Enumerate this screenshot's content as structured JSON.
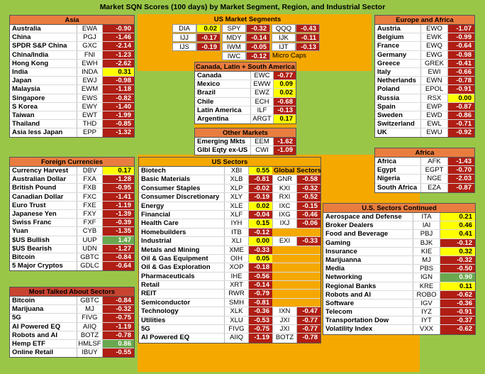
{
  "title": "Market SQN Scores (100 days) by Market Segment, Region, and Industrial Sector",
  "colors": {
    "negative": "#b01e14",
    "positive": "#ffff00",
    "strong_positive": "#6aa84f",
    "header": "#e97d3f",
    "frame": "#f5a800",
    "background": "#9ac648"
  },
  "asia": {
    "header": "Asia",
    "rows": [
      {
        "name": "Australia",
        "ticker": "EWA",
        "value": "-0.90"
      },
      {
        "name": "China",
        "ticker": "PGJ",
        "value": "-1.46"
      },
      {
        "name": "SPDR S&P China",
        "ticker": "GXC",
        "value": "-2.14"
      },
      {
        "name": "China/India",
        "ticker": "FNI",
        "value": "-1.23"
      },
      {
        "name": "Hong Kong",
        "ticker": "EWH",
        "value": "-2.62"
      },
      {
        "name": "India",
        "ticker": "INDA",
        "value": "0.31"
      },
      {
        "name": "Japan",
        "ticker": "EWJ",
        "value": "-0.98"
      },
      {
        "name": "Malaysia",
        "ticker": "EWM",
        "value": "-1.18"
      },
      {
        "name": "Singapore",
        "ticker": "EWS",
        "value": "-0.82"
      },
      {
        "name": "S Korea",
        "ticker": "EWY",
        "value": "-1.40"
      },
      {
        "name": "Taiwan",
        "ticker": "EWT",
        "value": "-1.99"
      },
      {
        "name": "Thailand",
        "ticker": "THD",
        "value": "-0.85"
      },
      {
        "name": "Asia less Japan",
        "ticker": "EPP",
        "value": "-1.32"
      }
    ]
  },
  "currencies": {
    "header": "Foreign Currencies",
    "rows": [
      {
        "name": "Currency Harvest",
        "ticker": "DBV",
        "value": "0.17"
      },
      {
        "name": "Australian Dollar",
        "ticker": "FXA",
        "value": "-1.28"
      },
      {
        "name": "British Pound",
        "ticker": "FXB",
        "value": "-0.95"
      },
      {
        "name": "Canadian Dollar",
        "ticker": "FXC",
        "value": "-1.41"
      },
      {
        "name": "Euro Trust",
        "ticker": "FXE",
        "value": "-1.19"
      },
      {
        "name": "Japanese Yen",
        "ticker": "FXY",
        "value": "-1.39"
      },
      {
        "name": "Swiss Franc",
        "ticker": "FXF",
        "value": "-0.39"
      },
      {
        "name": "Yuan",
        "ticker": "CYB",
        "value": "-1.35"
      },
      {
        "name": "$US Bullish",
        "ticker": "UUP",
        "value": "1.47"
      },
      {
        "name": "$US Bearish",
        "ticker": "UDN",
        "value": "-1.27"
      },
      {
        "name": "Bitcoin",
        "ticker": "GBTC",
        "value": "-0.84"
      },
      {
        "name": "5 Major Cryptos",
        "ticker": "GDLC",
        "value": "-0.64"
      }
    ]
  },
  "talked": {
    "header": "Most Talked About Sectors",
    "rows": [
      {
        "name": "Bitcoin",
        "ticker": "GBTC",
        "value": "-0.84"
      },
      {
        "name": "Marijuana",
        "ticker": "MJ",
        "value": "-0.32"
      },
      {
        "name": "5G",
        "ticker": "FIVG",
        "value": "-0.75"
      },
      {
        "name": "AI Powered EQ",
        "ticker": "AIIQ",
        "value": "-1.19"
      },
      {
        "name": "Robots and AI",
        "ticker": "BOTZ",
        "value": "-0.78"
      },
      {
        "name": "Hemp ETF",
        "ticker": "HMLSF",
        "value": "0.86"
      },
      {
        "name": "Online Retail",
        "ticker": "IBUY",
        "value": "-0.55"
      }
    ]
  },
  "us_segments": {
    "header": "US Market Segments",
    "cells": [
      {
        "ticker": "DIA",
        "value": "0.02"
      },
      {
        "ticker": "SPY",
        "value": "-0.32"
      },
      {
        "ticker": "QQQ",
        "value": "-0.43"
      },
      {
        "ticker": "IJJ",
        "value": "-0.17"
      },
      {
        "ticker": "MDY",
        "value": "-0.14"
      },
      {
        "ticker": "IJK",
        "value": "-0.11"
      },
      {
        "ticker": "IJS",
        "value": "-0.19"
      },
      {
        "ticker": "IWM",
        "value": "-0.05"
      },
      {
        "ticker": "IJT",
        "value": "-0.13"
      }
    ],
    "micro": {
      "ticker": "IWC",
      "value": "-0.12",
      "label": "Micro Caps"
    }
  },
  "americas": {
    "header": "Canada, Latin + South America",
    "rows": [
      {
        "name": "Canada",
        "ticker": "EWC",
        "value": "-0.77"
      },
      {
        "name": "Mexico",
        "ticker": "EWW",
        "value": "0.09"
      },
      {
        "name": "Brazil",
        "ticker": "EWZ",
        "value": "0.02"
      },
      {
        "name": "Chile",
        "ticker": "ECH",
        "value": "-0.68"
      },
      {
        "name": "Latin America",
        "ticker": "ILF",
        "value": "-0.13"
      },
      {
        "name": "Argentina",
        "ticker": "ARGT",
        "value": "0.17"
      }
    ]
  },
  "other": {
    "header": "Other Markets",
    "rows": [
      {
        "name": "Emerging Mkts",
        "ticker": "EEM",
        "value": "-1.62"
      },
      {
        "name": "Glbl Eqty ex-US",
        "ticker": "CWI",
        "value": "-1.09"
      }
    ]
  },
  "europe": {
    "header": "Europe and Africa",
    "rows": [
      {
        "name": "Austria",
        "ticker": "EWO",
        "value": "-1.07"
      },
      {
        "name": "Belgium",
        "ticker": "EWK",
        "value": "-0.99"
      },
      {
        "name": "France",
        "ticker": "EWQ",
        "value": "-0.64"
      },
      {
        "name": "Germany",
        "ticker": "EWG",
        "value": "-0.98"
      },
      {
        "name": "Greece",
        "ticker": "GREK",
        "value": "-0.41"
      },
      {
        "name": "Italy",
        "ticker": "EWI",
        "value": "-0.66"
      },
      {
        "name": "Netherlands",
        "ticker": "EWN",
        "value": "-0.78"
      },
      {
        "name": "Poland",
        "ticker": "EPOL",
        "value": "-0.91"
      },
      {
        "name": "Russia",
        "ticker": "RSX",
        "value": "0.00"
      },
      {
        "name": "Spain",
        "ticker": "EWP",
        "value": "-0.87"
      },
      {
        "name": "Sweden",
        "ticker": "EWD",
        "value": "-0.86"
      },
      {
        "name": "Switzerland",
        "ticker": "EWL",
        "value": "-0.71"
      },
      {
        "name": "UK",
        "ticker": "EWU",
        "value": "-0.92"
      }
    ]
  },
  "africa": {
    "header": "Africa",
    "rows": [
      {
        "name": "Africa",
        "ticker": "AFK",
        "value": "-1.43"
      },
      {
        "name": "Egypt",
        "ticker": "EGPT",
        "value": "-0.70"
      },
      {
        "name": "Nigeria",
        "ticker": "NGE",
        "value": "-2.03"
      },
      {
        "name": "South Africa",
        "ticker": "EZA",
        "value": "-0.87"
      }
    ]
  },
  "us_sectors": {
    "header": "US Sectors",
    "global_header": "Global Sectors",
    "rows": [
      {
        "name": "Biotech",
        "ticker": "XBI",
        "value": "0.55",
        "g_ticker": "",
        "g_value": ""
      },
      {
        "name": "Basic Materials",
        "ticker": "XLB",
        "value": "-0.81",
        "g_ticker": "GNR",
        "g_value": "-0.58"
      },
      {
        "name": "Consumer Staples",
        "ticker": "XLP",
        "value": "-0.02",
        "g_ticker": "KXI",
        "g_value": "-0.32"
      },
      {
        "name": "Consumer Discretionary",
        "ticker": "XLY",
        "value": "-0.19",
        "g_ticker": "RXI",
        "g_value": "-0.52"
      },
      {
        "name": "Energy",
        "ticker": "XLE",
        "value": "0.02",
        "g_ticker": "IXC",
        "g_value": "-0.15"
      },
      {
        "name": "Financial",
        "ticker": "XLF",
        "value": "-0.04",
        "g_ticker": "IXG",
        "g_value": "-0.46"
      },
      {
        "name": "Health Care",
        "ticker": "IYH",
        "value": "0.15",
        "g_ticker": "IXJ",
        "g_value": "-0.06"
      },
      {
        "name": "Homebuilders",
        "ticker": "ITB",
        "value": "-0.12",
        "g_ticker": "",
        "g_value": ""
      },
      {
        "name": "Industrial",
        "ticker": "XLI",
        "value": "0.00",
        "g_ticker": "EXI",
        "g_value": "-0.33"
      },
      {
        "name": "Metals and Mining",
        "ticker": "XME",
        "value": "-0.33",
        "g_ticker": "",
        "g_value": ""
      },
      {
        "name": "Oil & Gas Equipment",
        "ticker": "OIH",
        "value": "0.05",
        "g_ticker": "",
        "g_value": ""
      },
      {
        "name": "Oil & Gas Exploration",
        "ticker": "XOP",
        "value": "-0.18",
        "g_ticker": "",
        "g_value": ""
      },
      {
        "name": "Pharmaceuticals",
        "ticker": "IHE",
        "value": "-0.56",
        "g_ticker": "",
        "g_value": ""
      },
      {
        "name": "Retail",
        "ticker": "XRT",
        "value": "-0.14",
        "g_ticker": "",
        "g_value": ""
      },
      {
        "name": "REIT",
        "ticker": "RWR",
        "value": "-0.79",
        "g_ticker": "",
        "g_value": ""
      },
      {
        "name": "Semiconductor",
        "ticker": "SMH",
        "value": "-0.81",
        "g_ticker": "",
        "g_value": ""
      },
      {
        "name": "Technology",
        "ticker": "XLK",
        "value": "-0.36",
        "g_ticker": "IXN",
        "g_value": "-0.47"
      },
      {
        "name": "Utilities",
        "ticker": "XLU",
        "value": "-0.53",
        "g_ticker": "JXI",
        "g_value": "-0.77"
      },
      {
        "name": "5G",
        "ticker": "FIVG",
        "value": "-0.75",
        "g_ticker": "JXI",
        "g_value": "-0.77"
      },
      {
        "name": "AI Powered EQ",
        "ticker": "AIIQ",
        "value": "-1.19",
        "g_ticker": "BOTZ",
        "g_value": "-0.78"
      }
    ]
  },
  "us_continued": {
    "header": "U.S. Sectors Continued",
    "rows": [
      {
        "name": "Aerospace and Defense",
        "ticker": "ITA",
        "value": "0.21"
      },
      {
        "name": "Broker Dealers",
        "ticker": "IAI",
        "value": "0.46"
      },
      {
        "name": "Food and Beverage",
        "ticker": "PBJ",
        "value": "0.41"
      },
      {
        "name": "Gaming",
        "ticker": "BJK",
        "value": "-0.12"
      },
      {
        "name": "Insurance",
        "ticker": "KIE",
        "value": "0.32"
      },
      {
        "name": "Marijuanna",
        "ticker": "MJ",
        "value": "-0.32"
      },
      {
        "name": "Media",
        "ticker": "PBS",
        "value": "-0.50"
      },
      {
        "name": "Networking",
        "ticker": "IGN",
        "value": "0.90"
      },
      {
        "name": "Regional Banks",
        "ticker": "KRE",
        "value": "0.11"
      },
      {
        "name": "Robots and AI",
        "ticker": "ROBO",
        "value": "-0.62"
      },
      {
        "name": "Software",
        "ticker": "IGV",
        "value": "-0.36"
      },
      {
        "name": "Telecom",
        "ticker": "IYZ",
        "value": "-0.91"
      },
      {
        "name": "Transportation Dow",
        "ticker": "IYT",
        "value": "-0.37"
      },
      {
        "name": "Volatility Index",
        "ticker": "VXX",
        "value": "-0.62"
      }
    ]
  }
}
